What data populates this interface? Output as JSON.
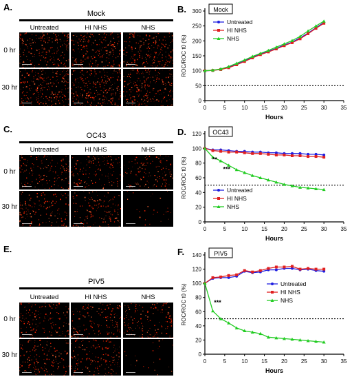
{
  "figure": {
    "panel_letters": [
      "A.",
      "B.",
      "C.",
      "D.",
      "E.",
      "F."
    ],
    "row_labels": [
      "0 hr",
      "30 hr"
    ],
    "column_labels": [
      "Untreated",
      "HI NHS",
      "NHS"
    ],
    "sections": [
      {
        "title": "Mock",
        "density": [
          [
            0.85,
            0.85,
            0.85
          ],
          [
            0.95,
            0.95,
            0.95
          ]
        ]
      },
      {
        "title": "OC43",
        "density": [
          [
            0.55,
            0.55,
            0.5
          ],
          [
            0.55,
            0.55,
            0.1
          ]
        ]
      },
      {
        "title": "PIV5",
        "density": [
          [
            0.6,
            0.6,
            0.55
          ],
          [
            0.6,
            0.6,
            0.08
          ]
        ]
      }
    ],
    "colors": {
      "untreated": "#1f1fe0",
      "hi_nhs": "#e02020",
      "nhs": "#22cc22",
      "cells": "#ff2200"
    }
  },
  "chart_data": [
    {
      "type": "line",
      "title": "Mock",
      "xlabel": "Hours",
      "ylabel": "ROC/ROC t0 (%)",
      "xlim": [
        0,
        35
      ],
      "ylim": [
        0,
        300
      ],
      "xticks": [
        0,
        5,
        10,
        15,
        20,
        25,
        30,
        35
      ],
      "yticks": [
        0,
        50,
        100,
        150,
        200,
        250,
        300
      ],
      "reference_line": 50,
      "legend_position": "top-left",
      "x": [
        0,
        2,
        4,
        6,
        8,
        10,
        12,
        14,
        16,
        18,
        20,
        22,
        24,
        26,
        28,
        30
      ],
      "series": [
        {
          "name": "Untreated",
          "color": "#1f1fe0",
          "marker": "circle",
          "values": [
            100,
            101,
            105,
            112,
            122,
            133,
            145,
            156,
            165,
            175,
            186,
            196,
            210,
            226,
            244,
            262
          ]
        },
        {
          "name": "HI NHS",
          "color": "#e02020",
          "marker": "square",
          "values": [
            100,
            101,
            104,
            110,
            120,
            131,
            143,
            154,
            163,
            173,
            184,
            194,
            207,
            224,
            242,
            259
          ]
        },
        {
          "name": "NHS",
          "color": "#22cc22",
          "marker": "triangle",
          "values": [
            100,
            102,
            106,
            114,
            125,
            136,
            148,
            158,
            168,
            179,
            190,
            201,
            215,
            233,
            250,
            266
          ]
        }
      ],
      "annotations": []
    },
    {
      "type": "line",
      "title": "OC43",
      "xlabel": "Hours",
      "ylabel": "ROC/ROC t0 (%)",
      "xlim": [
        0,
        35
      ],
      "ylim": [
        0,
        120
      ],
      "xticks": [
        0,
        5,
        10,
        15,
        20,
        25,
        30,
        35
      ],
      "yticks": [
        0,
        20,
        40,
        60,
        80,
        100,
        120
      ],
      "reference_line": 50,
      "legend_position": "bottom-left",
      "x": [
        0,
        2,
        4,
        6,
        8,
        10,
        12,
        14,
        16,
        18,
        20,
        22,
        24,
        26,
        28,
        30
      ],
      "series": [
        {
          "name": "Untreated",
          "color": "#1f1fe0",
          "marker": "circle",
          "values": [
            100,
            98,
            98,
            97,
            96,
            96,
            95,
            95,
            94,
            94,
            93,
            93,
            93,
            92,
            92,
            91
          ]
        },
        {
          "name": "HI NHS",
          "color": "#e02020",
          "marker": "square",
          "values": [
            100,
            97,
            96,
            95,
            95,
            94,
            93,
            93,
            92,
            91,
            91,
            90,
            90,
            89,
            89,
            88
          ]
        },
        {
          "name": "NHS",
          "color": "#22cc22",
          "marker": "triangle",
          "values": [
            100,
            88,
            83,
            77,
            71,
            67,
            63,
            60,
            57,
            54,
            51,
            49,
            47,
            46,
            45,
            44
          ]
        }
      ],
      "annotations": [
        {
          "text": "**",
          "x": 2.5,
          "y": 82
        },
        {
          "text": "***",
          "x": 5.5,
          "y": 69
        }
      ]
    },
    {
      "type": "line",
      "title": "PIV5",
      "xlabel": "Hours",
      "ylabel": "ROC/ROC t0 (%)",
      "xlim": [
        0,
        35
      ],
      "ylim": [
        0,
        140
      ],
      "xticks": [
        0,
        5,
        10,
        15,
        20,
        25,
        30,
        35
      ],
      "yticks": [
        0,
        20,
        40,
        60,
        80,
        100,
        120,
        140
      ],
      "reference_line": 50,
      "legend_position": "right",
      "x": [
        0,
        2,
        4,
        6,
        8,
        10,
        12,
        14,
        16,
        18,
        20,
        22,
        24,
        26,
        28,
        30
      ],
      "series": [
        {
          "name": "Untreated",
          "color": "#1f1fe0",
          "marker": "circle",
          "values": [
            100,
            107,
            108,
            108,
            110,
            117,
            115,
            116,
            119,
            119,
            121,
            121,
            119,
            120,
            118,
            117
          ]
        },
        {
          "name": "HI NHS",
          "color": "#e02020",
          "marker": "square",
          "values": [
            100,
            108,
            109,
            111,
            112,
            118,
            116,
            118,
            121,
            123,
            123,
            124,
            120,
            121,
            120,
            120
          ]
        },
        {
          "name": "NHS",
          "color": "#22cc22",
          "marker": "triangle",
          "values": [
            100,
            61,
            50,
            44,
            37,
            33,
            31,
            29,
            24,
            23,
            22,
            21,
            20,
            19,
            18,
            17
          ]
        }
      ],
      "annotations": [
        {
          "text": "***",
          "x": 3.2,
          "y": 70
        }
      ]
    }
  ]
}
